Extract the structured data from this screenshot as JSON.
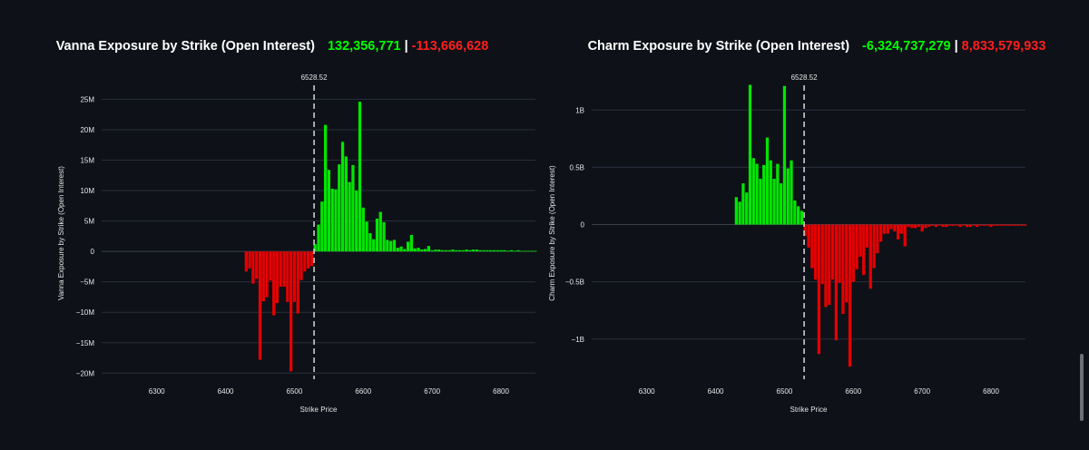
{
  "colors": {
    "background": "#0e1118",
    "positive": "#00e600",
    "negative": "#e60000",
    "grid": "#2a2f3a",
    "text": "#ffffff",
    "spot_line": "#d9d9d9"
  },
  "panels": [
    {
      "title": "Vanna Exposure by Strike (Open Interest)",
      "pos_total": "132,356,771",
      "separator": "|",
      "neg_total": "-113,666,628"
    },
    {
      "title": "Charm Exposure by Strike (Open Interest)",
      "pos_total": "-6,324,737,279",
      "separator": "|",
      "neg_total": "8,833,579,933"
    }
  ],
  "chart_data": [
    {
      "type": "bar",
      "xlabel": "Strike Price",
      "ylabel": "Vanna Exposure by Strike (Open Interest)",
      "xlim": [
        6220,
        6850
      ],
      "ylim": [
        -21000000,
        27000000
      ],
      "xticks": [
        6300,
        6400,
        6500,
        6600,
        6700,
        6800
      ],
      "yticks": [
        {
          "value": 25000000,
          "label": "25M"
        },
        {
          "value": 20000000,
          "label": "20M"
        },
        {
          "value": 15000000,
          "label": "15M"
        },
        {
          "value": 10000000,
          "label": "10M"
        },
        {
          "value": 5000000,
          "label": "5M"
        },
        {
          "value": 0,
          "label": "0"
        },
        {
          "value": -5000000,
          "label": "−5M"
        },
        {
          "value": -10000000,
          "label": "−10M"
        },
        {
          "value": -15000000,
          "label": "−15M"
        },
        {
          "value": -20000000,
          "label": "−20M"
        }
      ],
      "spot": {
        "value": 6528.52,
        "label": "6528.52"
      },
      "grid": true,
      "strikes": [
        6430,
        6435,
        6440,
        6445,
        6450,
        6455,
        6460,
        6465,
        6470,
        6475,
        6480,
        6485,
        6490,
        6495,
        6500,
        6505,
        6510,
        6515,
        6520,
        6525,
        6530,
        6535,
        6540,
        6545,
        6550,
        6555,
        6560,
        6565,
        6570,
        6575,
        6580,
        6585,
        6590,
        6595,
        6600,
        6605,
        6610,
        6615,
        6620,
        6625,
        6630,
        6635,
        6640,
        6645,
        6650,
        6655,
        6660,
        6665,
        6670,
        6675,
        6680,
        6685,
        6690,
        6695,
        6700,
        6705,
        6710,
        6715,
        6720,
        6725,
        6730,
        6735,
        6740,
        6745,
        6750,
        6755,
        6760,
        6765,
        6770,
        6775,
        6780,
        6785,
        6790,
        6795,
        6800,
        6805,
        6810,
        6815,
        6820,
        6825,
        6830,
        6835,
        6840,
        6845,
        6850
      ],
      "values": [
        -3300000,
        -2800000,
        -5300000,
        -4500000,
        -17800000,
        -8200000,
        -7500000,
        -4800000,
        -10500000,
        -8500000,
        -5800000,
        -5800000,
        -8300000,
        -19700000,
        -8300000,
        -10200000,
        -4700000,
        -3300000,
        -2800000,
        -2400000,
        1200000,
        4400000,
        8200000,
        20800000,
        13400000,
        10300000,
        10200000,
        14300000,
        18000000,
        15600000,
        11400000,
        14200000,
        10000000,
        24600000,
        7200000,
        4900000,
        3000000,
        2000000,
        5400000,
        6500000,
        4800000,
        1900000,
        1700000,
        1900000,
        600000,
        800000,
        400000,
        1600000,
        2700000,
        500000,
        600000,
        300000,
        400000,
        900000,
        200000,
        300000,
        300000,
        200000,
        200000,
        200000,
        300000,
        200000,
        200000,
        200000,
        300000,
        200000,
        300000,
        300000,
        200000,
        200000,
        200000,
        200000,
        200000,
        200000,
        200000,
        200000,
        100000,
        200000,
        100000,
        200000,
        100000,
        100000,
        100000,
        100000,
        100000
      ]
    },
    {
      "type": "bar",
      "xlabel": "Strike Price",
      "ylabel": "Charm Exposure by Strike (Open Interest)",
      "xlim": [
        6220,
        6850
      ],
      "ylim": [
        -1350000000,
        1200000000
      ],
      "xticks": [
        6300,
        6400,
        6500,
        6600,
        6700,
        6800
      ],
      "yticks": [
        {
          "value": 1000000000,
          "label": "1B"
        },
        {
          "value": 500000000,
          "label": "0.5B"
        },
        {
          "value": 0,
          "label": "0"
        },
        {
          "value": -500000000,
          "label": "−0.5B"
        },
        {
          "value": -1000000000,
          "label": "−1B"
        }
      ],
      "spot": {
        "value": 6528.52,
        "label": "6528.52"
      },
      "grid": true,
      "strikes": [
        6430,
        6435,
        6440,
        6445,
        6450,
        6455,
        6460,
        6465,
        6470,
        6475,
        6480,
        6485,
        6490,
        6495,
        6500,
        6505,
        6510,
        6515,
        6520,
        6525,
        6530,
        6535,
        6540,
        6545,
        6550,
        6555,
        6560,
        6565,
        6570,
        6575,
        6580,
        6585,
        6590,
        6595,
        6600,
        6605,
        6610,
        6615,
        6620,
        6625,
        6630,
        6635,
        6640,
        6645,
        6650,
        6655,
        6660,
        6665,
        6670,
        6675,
        6680,
        6685,
        6690,
        6695,
        6700,
        6705,
        6710,
        6715,
        6720,
        6725,
        6730,
        6735,
        6740,
        6745,
        6750,
        6755,
        6760,
        6765,
        6770,
        6775,
        6780,
        6785,
        6790,
        6795,
        6800,
        6805,
        6810,
        6815,
        6820,
        6825,
        6830,
        6835,
        6840,
        6845,
        6850
      ],
      "values": [
        240000000,
        200000000,
        360000000,
        280000000,
        1220000000,
        580000000,
        530000000,
        400000000,
        520000000,
        760000000,
        560000000,
        400000000,
        530000000,
        360000000,
        1210000000,
        490000000,
        560000000,
        210000000,
        160000000,
        120000000,
        -100000000,
        -200000000,
        -380000000,
        -480000000,
        -1130000000,
        -520000000,
        -720000000,
        -700000000,
        -480000000,
        -1010000000,
        -510000000,
        -780000000,
        -680000000,
        -1240000000,
        -500000000,
        -390000000,
        -280000000,
        -440000000,
        -200000000,
        -560000000,
        -380000000,
        -250000000,
        -150000000,
        -80000000,
        -80000000,
        -40000000,
        -60000000,
        -130000000,
        -80000000,
        -190000000,
        -20000000,
        -30000000,
        -30000000,
        -20000000,
        -60000000,
        -30000000,
        -20000000,
        -10000000,
        -20000000,
        -10000000,
        -20000000,
        -20000000,
        -10000000,
        -10000000,
        -10000000,
        -20000000,
        -10000000,
        -20000000,
        -20000000,
        -10000000,
        -20000000,
        -10000000,
        -10000000,
        -10000000,
        -20000000,
        -10000000,
        -10000000,
        -10000000,
        -10000000,
        -10000000,
        -10000000,
        -10000000,
        -10000000,
        -10000000,
        -10000000
      ]
    }
  ]
}
